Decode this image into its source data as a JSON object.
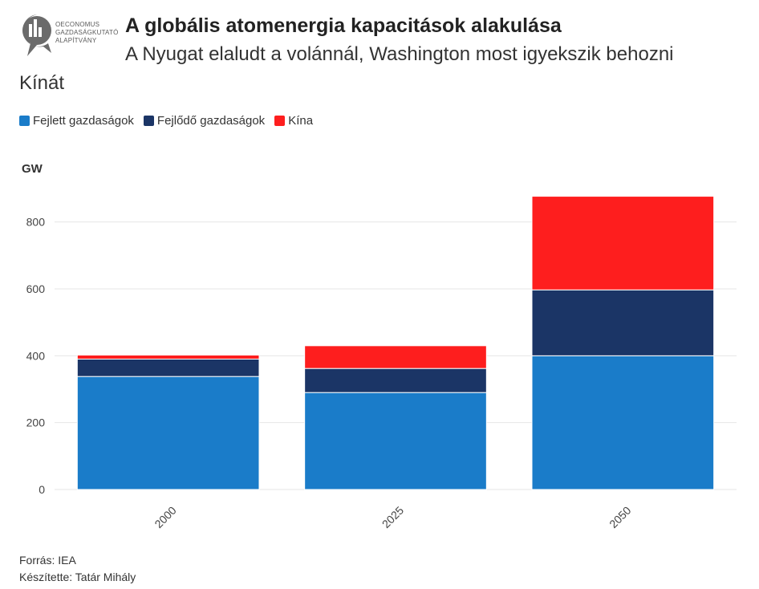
{
  "header": {
    "title": "A globális atomenergia kapacitások alakulása",
    "subtitle": "A Nyugat elaludt a volánnál, Washington most igyekszik behozni",
    "subtitle_line2": "Kínát",
    "logo_lines": [
      "OECONOMUS",
      "GAZDASÁGKUTATÓ",
      "ALAPÍTVÁNY"
    ]
  },
  "footer": {
    "source": "Forrás: IEA",
    "author": "Készítette: Tatár Mihály"
  },
  "colors": {
    "advanced": "#1a7cc9",
    "developing": "#1b3566",
    "china": "#fe1e1e",
    "grid": "#e6e6e6",
    "text": "#333333"
  },
  "chart_data": {
    "type": "bar",
    "stacked": true,
    "ylabel": "GW",
    "ylim": [
      0,
      900
    ],
    "yticks": [
      0,
      200,
      400,
      600,
      800
    ],
    "categories": [
      "2000",
      "2025",
      "2050"
    ],
    "legend_position": "top-left",
    "grid": true,
    "series": [
      {
        "name": "Fejlett gazdaságok",
        "color": "#1a7cc9",
        "values": [
          338,
          290,
          400
        ]
      },
      {
        "name": "Fejlődő gazdaságok",
        "color": "#1b3566",
        "values": [
          52,
          72,
          197
        ]
      },
      {
        "name": "Kína",
        "color": "#fe1e1e",
        "values": [
          12,
          68,
          280
        ]
      }
    ]
  }
}
